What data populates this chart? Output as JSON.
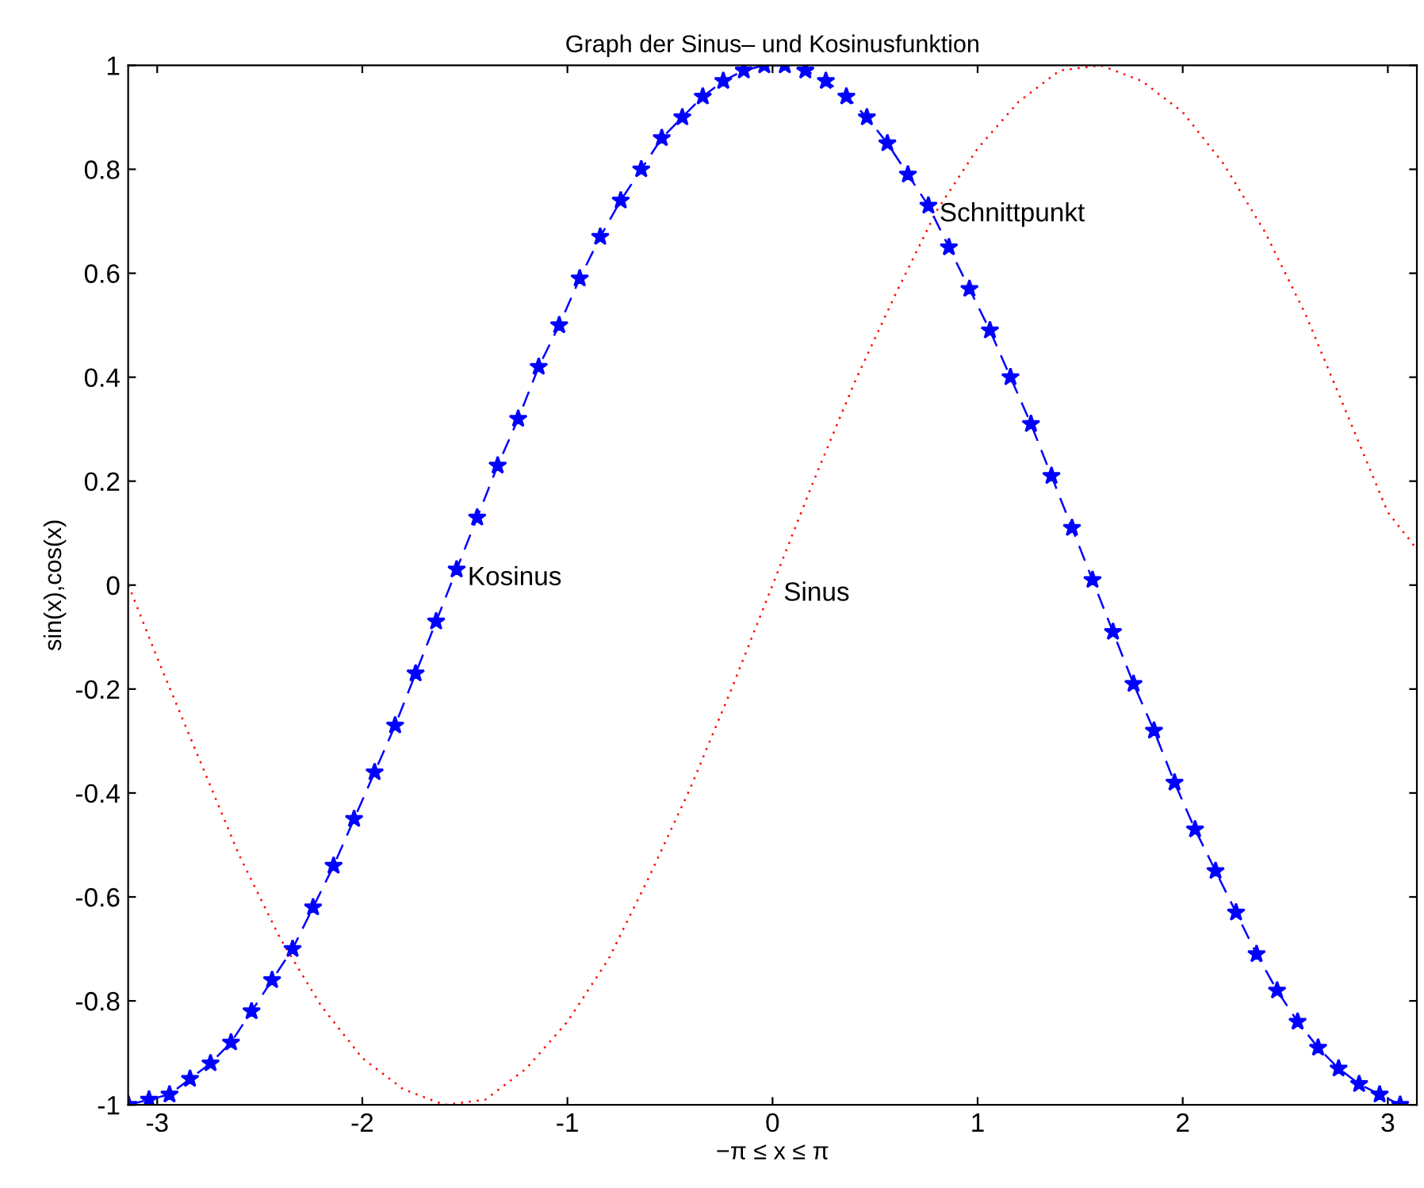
{
  "chart_data": {
    "type": "line",
    "title": "Graph der Sinus– und Kosinusfunktion",
    "xlabel": "−π ≤ x ≤ π",
    "ylabel": "sin(x),cos(x)",
    "xlim": [
      -3.1416,
      3.1416
    ],
    "ylim": [
      -1,
      1
    ],
    "xticks": [
      -3,
      -2,
      -1,
      0,
      1,
      2,
      3
    ],
    "yticks": [
      -1,
      -0.8,
      -0.6,
      -0.4,
      -0.2,
      0,
      0.2,
      0.4,
      0.6,
      0.8,
      1
    ],
    "grid": false,
    "legend": false,
    "series": [
      {
        "color": "#ff0000",
        "line_style": "dotted",
        "marker": "none",
        "x": [
          -3.14,
          -3.0,
          -2.8,
          -2.6,
          -2.4,
          -2.2,
          -2.0,
          -1.8,
          -1.6,
          -1.4,
          -1.2,
          -1.0,
          -0.8,
          -0.6,
          -0.4,
          -0.2,
          0,
          0.2,
          0.4,
          0.6,
          0.8,
          1.0,
          1.2,
          1.4,
          1.6,
          1.8,
          2.0,
          2.2,
          2.4,
          2.6,
          2.8,
          3.0,
          3.14
        ],
        "values": [
          0,
          -0.14,
          -0.33,
          -0.52,
          -0.68,
          -0.81,
          -0.91,
          -0.97,
          -1.0,
          -0.99,
          -0.93,
          -0.84,
          -0.72,
          -0.56,
          -0.39,
          -0.2,
          0,
          0.2,
          0.39,
          0.56,
          0.72,
          0.84,
          0.93,
          0.99,
          1.0,
          0.97,
          0.91,
          0.81,
          0.68,
          0.52,
          0.33,
          0.14,
          0.07
        ]
      },
      {
        "color": "#0000ff",
        "line_style": "dashed",
        "marker": "star",
        "x": [
          -3.14,
          -3.04,
          -2.94,
          -2.84,
          -2.74,
          -2.64,
          -2.54,
          -2.44,
          -2.34,
          -2.24,
          -2.14,
          -2.04,
          -1.94,
          -1.84,
          -1.74,
          -1.64,
          -1.54,
          -1.44,
          -1.34,
          -1.24,
          -1.14,
          -1.04,
          -0.94,
          -0.84,
          -0.74,
          -0.64,
          -0.54,
          -0.44,
          -0.34,
          -0.24,
          -0.14,
          -0.04,
          0.06,
          0.16,
          0.26,
          0.36,
          0.46,
          0.56,
          0.66,
          0.76,
          0.86,
          0.96,
          1.06,
          1.16,
          1.26,
          1.36,
          1.46,
          1.56,
          1.66,
          1.76,
          1.86,
          1.96,
          2.06,
          2.16,
          2.26,
          2.36,
          2.46,
          2.56,
          2.66,
          2.76,
          2.86,
          2.96,
          3.06
        ],
        "values": [
          -1.0,
          -0.99,
          -0.98,
          -0.95,
          -0.92,
          -0.88,
          -0.82,
          -0.76,
          -0.7,
          -0.62,
          -0.54,
          -0.45,
          -0.36,
          -0.27,
          -0.17,
          -0.07,
          0.03,
          0.13,
          0.23,
          0.32,
          0.42,
          0.5,
          0.59,
          0.67,
          0.74,
          0.8,
          0.86,
          0.9,
          0.94,
          0.97,
          0.99,
          1.0,
          1.0,
          0.99,
          0.97,
          0.94,
          0.9,
          0.85,
          0.79,
          0.73,
          0.65,
          0.57,
          0.49,
          0.4,
          0.31,
          0.21,
          0.11,
          0.01,
          -0.09,
          -0.19,
          -0.28,
          -0.38,
          -0.47,
          -0.55,
          -0.63,
          -0.71,
          -0.78,
          -0.84,
          -0.89,
          -0.93,
          -0.96,
          -0.98,
          -1.0
        ]
      }
    ],
    "annotations": [
      {
        "text": "Kosinus",
        "x": -1.54,
        "y": 0.03
      },
      {
        "text": "Sinus",
        "x": 0,
        "y": 0
      },
      {
        "text": "Schnittpunkt",
        "x": 0.76,
        "y": 0.73
      }
    ]
  }
}
